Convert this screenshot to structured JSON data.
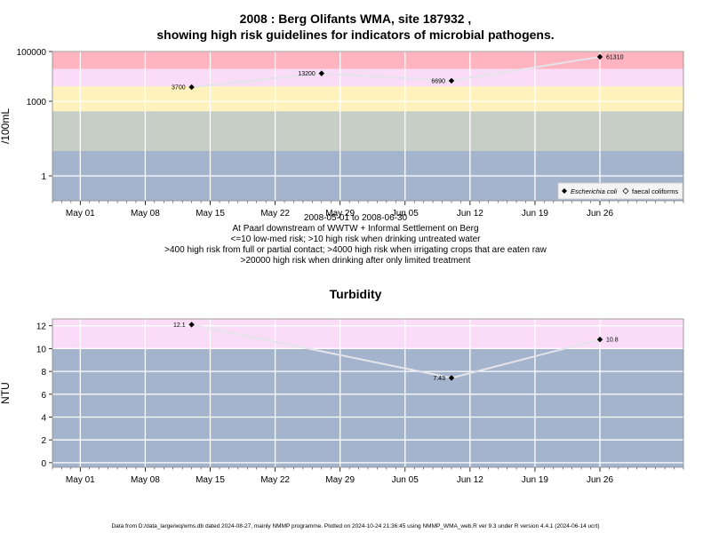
{
  "header": {
    "title_line1": "2008 : Berg Olifants WMA, site 187932 ,",
    "title_line2": "showing high risk guidelines for indicators of microbial pathogens."
  },
  "captions": {
    "line1": "2008-05-01 to 2008-06-30",
    "line2": "At Paarl downstream of WWTW + Informal Settlement on Berg",
    "line3": "<=10 low-med risk; >10 high risk when drinking untreated water",
    "line4": ">400 high risk from full or partial contact; >4000 high risk when irrigating crops that are eaten raw",
    "line5": ">20000 high risk when drinking after only limited treatment"
  },
  "turbidity_title": "Turbidity",
  "footer": "Data from D:/data_large/wq/wms.db dated 2024-08-27, mainly NMMP programme. Plotted on 2024-10-24 21:36:45 using NMMP_WMA_web.R ver 9.3 under R version 4.4.1 (2024-06-14 ucrt)",
  "chart_data": [
    {
      "type": "line",
      "ylabel": "/100mL",
      "y_scale": "log10",
      "ylim": [
        0.1,
        100000
      ],
      "y_ticks": [
        1,
        1000,
        100000
      ],
      "y_tick_labels": [
        "1",
        "1000",
        "100000"
      ],
      "xlim": [
        "2008-04-28",
        "2008-07-05"
      ],
      "x_ticks": [
        "2008-05-01",
        "2008-05-08",
        "2008-05-15",
        "2008-05-22",
        "2008-05-29",
        "2008-06-05",
        "2008-06-12",
        "2008-06-19",
        "2008-06-26"
      ],
      "x_tick_labels": [
        "May 01",
        "May 08",
        "May 15",
        "May 22",
        "May 29",
        "Jun 05",
        "Jun 12",
        "Jun 19",
        "Jun 26"
      ],
      "risk_bands": [
        {
          "from": 0.1,
          "to": 10,
          "color": "#a4b4cc"
        },
        {
          "from": 10,
          "to": 400,
          "color": "#c6cec6"
        },
        {
          "from": 400,
          "to": 4000,
          "color": "#fff2bc"
        },
        {
          "from": 4000,
          "to": 20000,
          "color": "#fadcf8"
        },
        {
          "from": 20000,
          "to": 100000,
          "color": "#ffb4bf"
        }
      ],
      "series": [
        {
          "name": "Escherichia coli",
          "x": [
            "2008-05-13",
            "2008-05-27",
            "2008-06-10",
            "2008-06-26"
          ],
          "y": [
            3700,
            13200,
            6690,
            61310
          ],
          "labels": [
            "3700",
            "13200",
            "6690",
            "61310"
          ]
        }
      ],
      "legend": {
        "position": "bottom-right",
        "entries": [
          "Escherichia coli",
          "faecal coliforms"
        ]
      }
    },
    {
      "type": "line",
      "title": "Turbidity",
      "ylabel": "NTU",
      "ylim": [
        -0.4,
        12.6
      ],
      "y_ticks": [
        0,
        2,
        4,
        6,
        8,
        10,
        12
      ],
      "y_tick_labels": [
        "0",
        "2",
        "4",
        "6",
        "8",
        "10",
        "12"
      ],
      "xlim": [
        "2008-04-28",
        "2008-07-05"
      ],
      "x_ticks": [
        "2008-05-01",
        "2008-05-08",
        "2008-05-15",
        "2008-05-22",
        "2008-05-29",
        "2008-06-05",
        "2008-06-12",
        "2008-06-19",
        "2008-06-26"
      ],
      "x_tick_labels": [
        "May 01",
        "May 08",
        "May 15",
        "May 22",
        "May 29",
        "Jun 05",
        "Jun 12",
        "Jun 19",
        "Jun 26"
      ],
      "risk_bands": [
        {
          "from": -0.4,
          "to": 10,
          "color": "#a4b4cc"
        },
        {
          "from": 10,
          "to": 12.6,
          "color": "#fadcf8"
        }
      ],
      "series": [
        {
          "x": [
            "2008-05-13",
            "2008-06-10",
            "2008-06-26"
          ],
          "y": [
            12.1,
            7.43,
            10.8
          ],
          "labels": [
            "12.1",
            "7.43",
            "10.8"
          ]
        }
      ]
    }
  ]
}
